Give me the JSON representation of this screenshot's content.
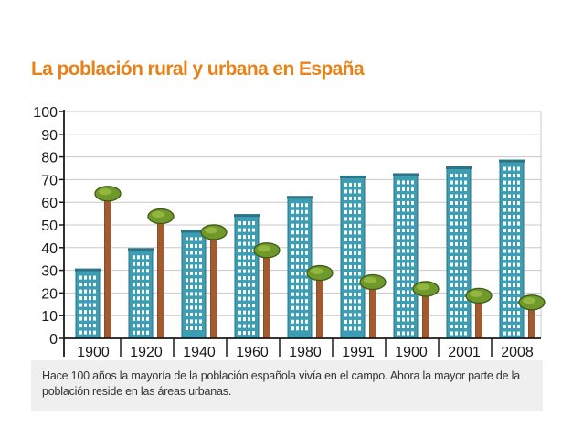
{
  "colors": {
    "title": "#e8811a",
    "building": "#3d9db2",
    "building_dark": "#2a7485",
    "window": "#ffffff",
    "trunk": "#a35a2e",
    "foliage": "#6f9a2b",
    "foliage_light": "#a3c24a",
    "grid": "#c8c8c8",
    "axis": "#1a1a1a",
    "caption_bg": "#efefef"
  },
  "caption": "Hace 100 años la mayoría de la población española vivía en el campo. Ahora la mayor parte de la población reside en las áreas urbanas.",
  "chart_data": {
    "type": "bar",
    "title": "La población rural y urbana en España",
    "xlabel": "",
    "ylabel": "",
    "ylim": [
      0,
      100
    ],
    "yticks": [
      0,
      10,
      20,
      30,
      40,
      50,
      60,
      70,
      80,
      90,
      100
    ],
    "grid": true,
    "categories": [
      "1900",
      "1920",
      "1940",
      "1960",
      "1980",
      "1991",
      "1900",
      "2001",
      "2008"
    ],
    "series": [
      {
        "name": "Población urbana",
        "icon": "building-icon",
        "values": [
          30,
          39,
          47,
          54,
          62,
          71,
          72,
          75,
          78
        ]
      },
      {
        "name": "Población rural",
        "icon": "tree-icon",
        "values": [
          63,
          53,
          46,
          38,
          28,
          24,
          21,
          18,
          15
        ]
      }
    ]
  }
}
